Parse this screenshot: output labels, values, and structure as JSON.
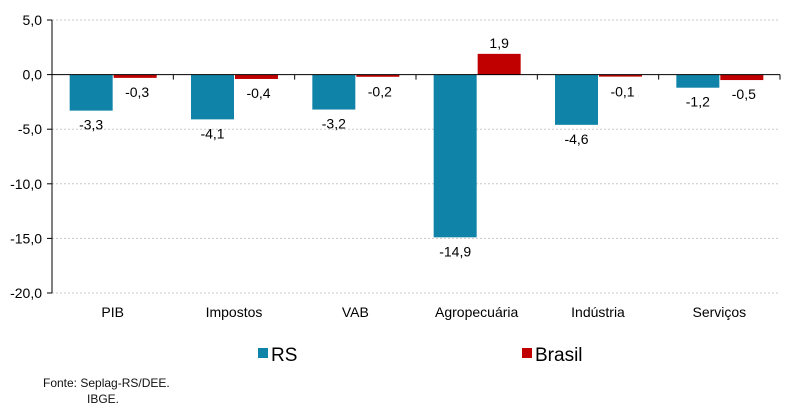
{
  "chart_data": {
    "type": "bar",
    "categories": [
      "PIB",
      "Impostos",
      "VAB",
      "Agropecuária",
      "Indústria",
      "Serviços"
    ],
    "series": [
      {
        "name": "RS",
        "color": "#0f84a8",
        "values": [
          -3.3,
          -4.1,
          -3.2,
          -14.9,
          -4.6,
          -1.2
        ]
      },
      {
        "name": "Brasil",
        "color": "#c00000",
        "values": [
          -0.3,
          -0.4,
          -0.2,
          1.9,
          -0.1,
          -0.5
        ]
      }
    ],
    "ylim": [
      -20,
      5
    ],
    "yticks": [
      "5,0",
      "0,0",
      "-5,0",
      "-10,0",
      "-15,0",
      "-20,0"
    ],
    "ytick_values": [
      5,
      0,
      -5,
      -10,
      -15,
      -20
    ],
    "grid": true,
    "legend": "bottom"
  },
  "source": {
    "line1": "Fonte: Seplag-RS/DEE.",
    "line2": "IBGE."
  }
}
